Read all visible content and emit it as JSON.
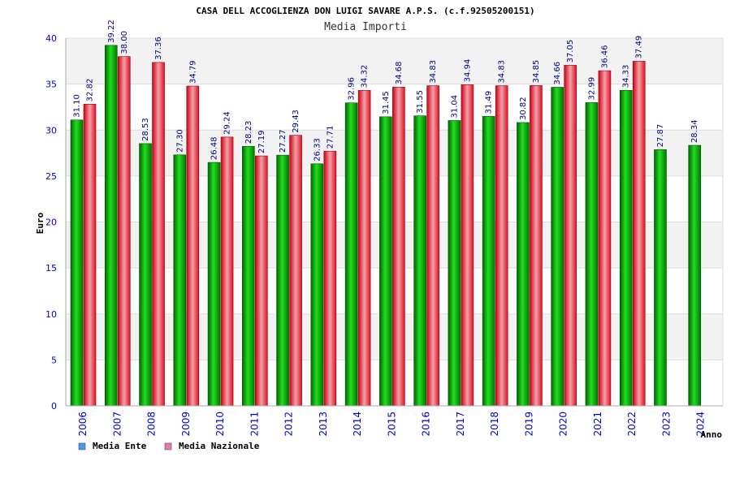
{
  "chart_data": {
    "type": "bar",
    "title": "CASA DELL ACCOGLIENZA DON LUIGI SAVARE A.P.S. (c.f.92505200151)",
    "subtitle": "Media Importi",
    "xlabel": "Anno",
    "ylabel": "Euro",
    "ylim": [
      0,
      40
    ],
    "yticks": [
      0,
      5,
      10,
      15,
      20,
      25,
      30,
      35,
      40
    ],
    "grid": true,
    "legend_position": "bottom-left",
    "categories": [
      "2006",
      "2007",
      "2008",
      "2009",
      "2010",
      "2011",
      "2012",
      "2013",
      "2014",
      "2015",
      "2016",
      "2017",
      "2018",
      "2019",
      "2020",
      "2021",
      "2022",
      "2023",
      "2024"
    ],
    "series": [
      {
        "name": "Media Ente",
        "color": "#00aa00",
        "legend_color": "#4d9be6",
        "values": [
          31.1,
          39.22,
          28.53,
          27.3,
          26.48,
          28.23,
          27.27,
          26.33,
          32.96,
          31.45,
          31.55,
          31.04,
          31.49,
          30.82,
          34.66,
          32.99,
          34.33,
          27.87,
          28.34
        ],
        "labels": [
          "31.10",
          "39.22",
          "28.53",
          "27.30",
          "26.48",
          "28.23",
          "27.27",
          "26.33",
          "32.96",
          "31.45",
          "31.55",
          "31.04",
          "31.49",
          "30.82",
          "34.66",
          "32.99",
          "34.33",
          "27.87",
          "28.34"
        ]
      },
      {
        "name": "Media Nazionale",
        "color": "#ee2233",
        "legend_color": "#e67aa8",
        "values": [
          32.82,
          38.0,
          37.36,
          34.79,
          29.24,
          27.19,
          29.43,
          27.71,
          34.32,
          34.68,
          34.83,
          34.94,
          34.83,
          34.85,
          37.05,
          36.46,
          37.49,
          null,
          null
        ],
        "labels": [
          "32.82",
          "38.00",
          "37.36",
          "34.79",
          "29.24",
          "27.19",
          "29.43",
          "27.71",
          "34.32",
          "34.68",
          "34.83",
          "34.94",
          "34.83",
          "34.85",
          "37.05",
          "36.46",
          "37.49",
          null,
          null
        ]
      }
    ]
  }
}
